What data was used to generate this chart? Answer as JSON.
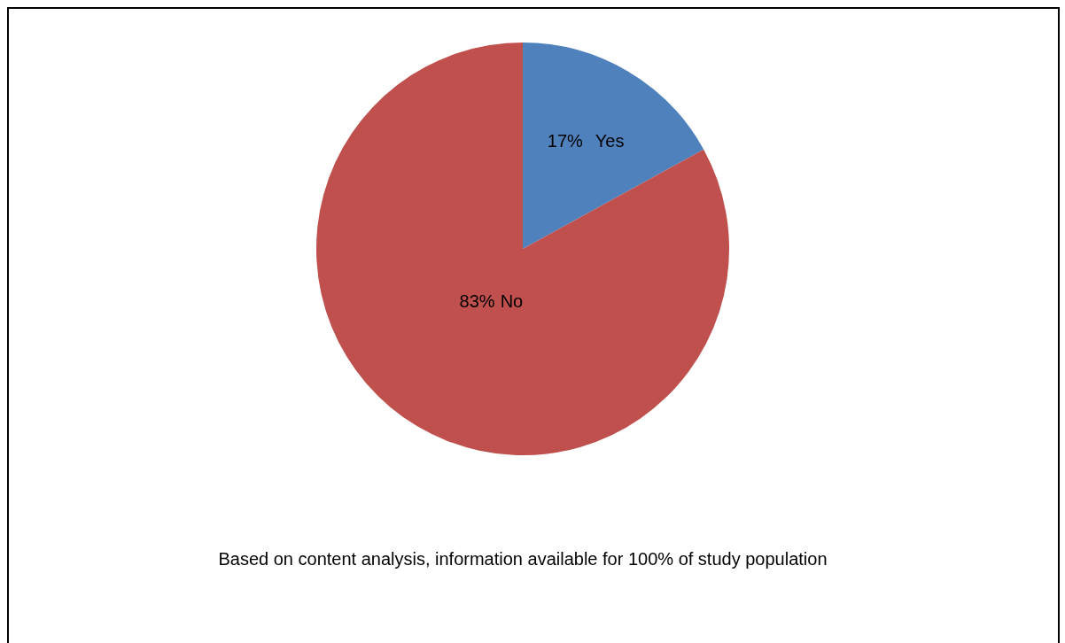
{
  "chart_data": {
    "type": "pie",
    "categories": [
      "Yes",
      "No"
    ],
    "values": [
      17,
      83
    ],
    "colors": [
      "#4f81bd",
      "#c0504d"
    ],
    "value_labels": [
      "17%",
      "83%"
    ],
    "legend": false,
    "annotations": [
      "Based on content analysis, information available for 100% of study population"
    ]
  }
}
